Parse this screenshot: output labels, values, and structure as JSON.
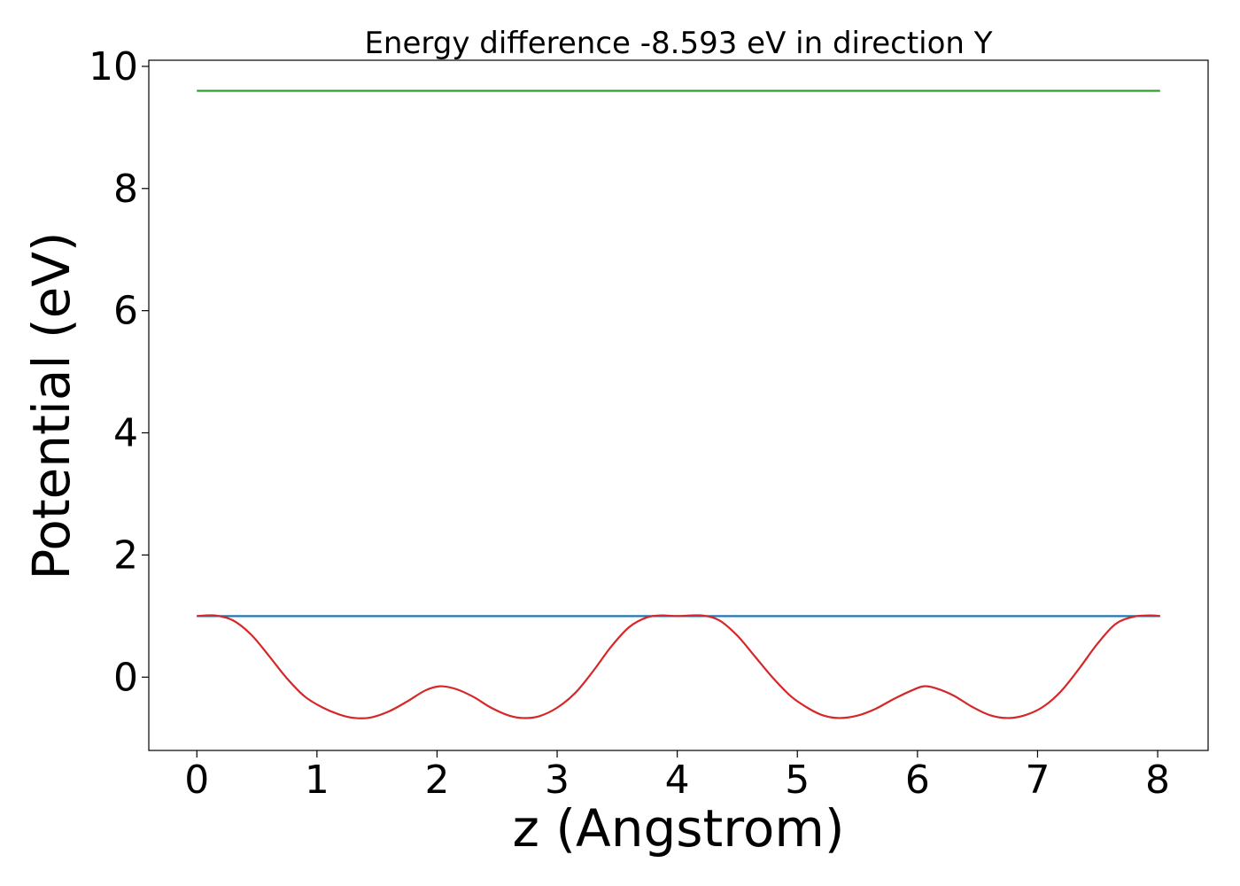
{
  "chart_data": {
    "type": "line",
    "title": "Energy difference -8.593 eV in direction Y",
    "xlabel": "z (Angstrom)",
    "ylabel": "Potential (eV)",
    "xlim": [
      -0.4,
      8.42
    ],
    "ylim": [
      -1.2,
      10.1
    ],
    "xticks": [
      0,
      1,
      2,
      3,
      4,
      5,
      6,
      7,
      8
    ],
    "yticks": [
      0,
      2,
      4,
      6,
      8,
      10
    ],
    "grid": false,
    "legend": "none",
    "series": [
      {
        "color": "#2ca02c",
        "x": [
          0,
          8.02
        ],
        "y": [
          9.6,
          9.6
        ]
      },
      {
        "color": "#1f77b4",
        "x": [
          0,
          8.02
        ],
        "y": [
          1.0,
          1.0
        ]
      },
      {
        "color": "#d62728",
        "x": [
          0,
          0.15,
          0.3,
          0.45,
          0.6,
          0.75,
          0.9,
          1.05,
          1.2,
          1.32,
          1.45,
          1.6,
          1.75,
          1.9,
          2.02,
          2.15,
          2.3,
          2.45,
          2.6,
          2.72,
          2.85,
          3.0,
          3.15,
          3.3,
          3.45,
          3.6,
          3.75,
          3.87,
          4.0,
          4.2,
          4.35,
          4.5,
          4.65,
          4.8,
          4.95,
          5.1,
          5.22,
          5.35,
          5.5,
          5.65,
          5.8,
          5.95,
          6.05,
          6.15,
          6.3,
          6.45,
          6.6,
          6.75,
          6.9,
          7.05,
          7.2,
          7.35,
          7.5,
          7.65,
          7.8,
          7.93,
          8.02
        ],
        "y": [
          1.0,
          1.01,
          0.93,
          0.7,
          0.35,
          -0.02,
          -0.32,
          -0.5,
          -0.62,
          -0.67,
          -0.66,
          -0.56,
          -0.4,
          -0.22,
          -0.15,
          -0.19,
          -0.32,
          -0.5,
          -0.63,
          -0.67,
          -0.64,
          -0.5,
          -0.26,
          0.1,
          0.5,
          0.82,
          0.98,
          1.01,
          1.0,
          1.01,
          0.93,
          0.68,
          0.33,
          -0.02,
          -0.32,
          -0.52,
          -0.63,
          -0.67,
          -0.63,
          -0.52,
          -0.36,
          -0.22,
          -0.15,
          -0.18,
          -0.3,
          -0.48,
          -0.62,
          -0.67,
          -0.62,
          -0.48,
          -0.22,
          0.15,
          0.55,
          0.87,
          0.99,
          1.01,
          1.0
        ]
      }
    ]
  }
}
